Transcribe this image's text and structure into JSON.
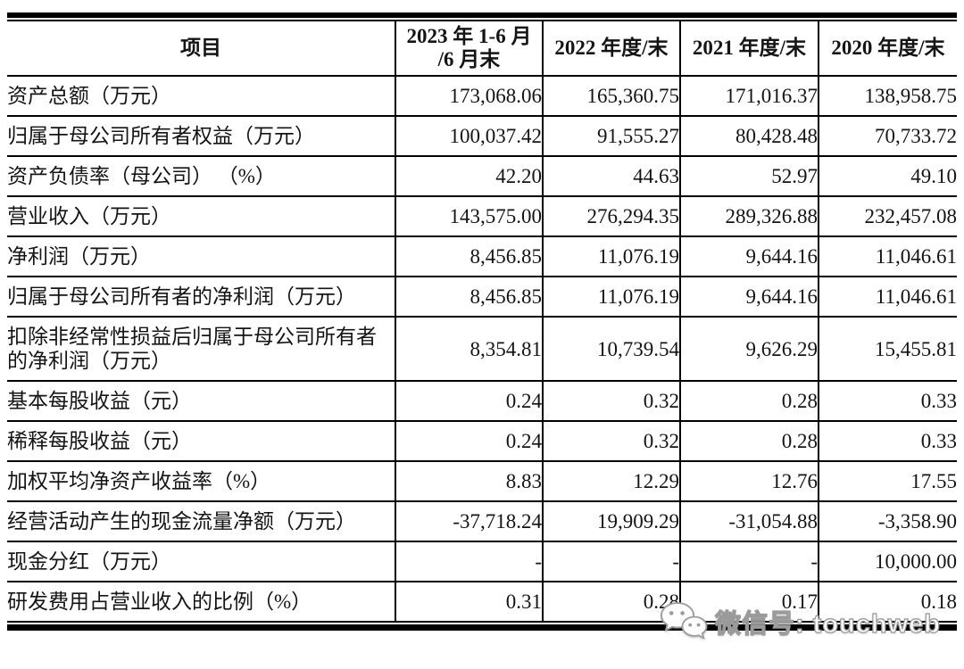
{
  "table": {
    "header": {
      "item_col": "项目",
      "period_cols": [
        "2023 年 1-6 月\n/6 月末",
        "2022 年度/末",
        "2021 年度/末",
        "2020 年度/末"
      ]
    },
    "rows": [
      {
        "label": "资产总额（万元）",
        "values": [
          "173,068.06",
          "165,360.75",
          "171,016.37",
          "138,958.75"
        ]
      },
      {
        "label": "归属于母公司所有者权益（万元）",
        "values": [
          "100,037.42",
          "91,555.27",
          "80,428.48",
          "70,733.72"
        ]
      },
      {
        "label": "资产负债率（母公司） （%）",
        "values": [
          "42.20",
          "44.63",
          "52.97",
          "49.10"
        ]
      },
      {
        "label": "营业收入（万元）",
        "values": [
          "143,575.00",
          "276,294.35",
          "289,326.88",
          "232,457.08"
        ]
      },
      {
        "label": "净利润（万元）",
        "values": [
          "8,456.85",
          "11,076.19",
          "9,644.16",
          "11,046.61"
        ]
      },
      {
        "label": "归属于母公司所有者的净利润（万元）",
        "values": [
          "8,456.85",
          "11,076.19",
          "9,644.16",
          "11,046.61"
        ]
      },
      {
        "label": "扣除非经常性损益后归属于母公司所有者的净利润（万元）",
        "values": [
          "8,354.81",
          "10,739.54",
          "9,626.29",
          "15,455.81"
        ]
      },
      {
        "label": "基本每股收益（元）",
        "values": [
          "0.24",
          "0.32",
          "0.28",
          "0.33"
        ]
      },
      {
        "label": "稀释每股收益（元）",
        "values": [
          "0.24",
          "0.32",
          "0.28",
          "0.33"
        ]
      },
      {
        "label": "加权平均净资产收益率（%）",
        "values": [
          "8.83",
          "12.29",
          "12.76",
          "17.55"
        ]
      },
      {
        "label": "经营活动产生的现金流量净额（万元）",
        "values": [
          "-37,718.24",
          "19,909.29",
          "-31,054.88",
          "-3,358.90"
        ]
      },
      {
        "label": "现金分红（万元）",
        "values": [
          "-",
          "-",
          "-",
          "10,000.00"
        ]
      },
      {
        "label": "研发费用占营业收入的比例（%）",
        "values": [
          "0.31",
          "0.28",
          "0.17",
          "0.18"
        ]
      }
    ]
  },
  "watermark": {
    "icon": "wechat-icon",
    "label": "微信号: touchweb"
  },
  "colors": {
    "border": "#000000",
    "text": "#141414",
    "background": "#ffffff",
    "watermark_fill": "#fbfbfb",
    "watermark_outline": "#9a9a9a"
  }
}
